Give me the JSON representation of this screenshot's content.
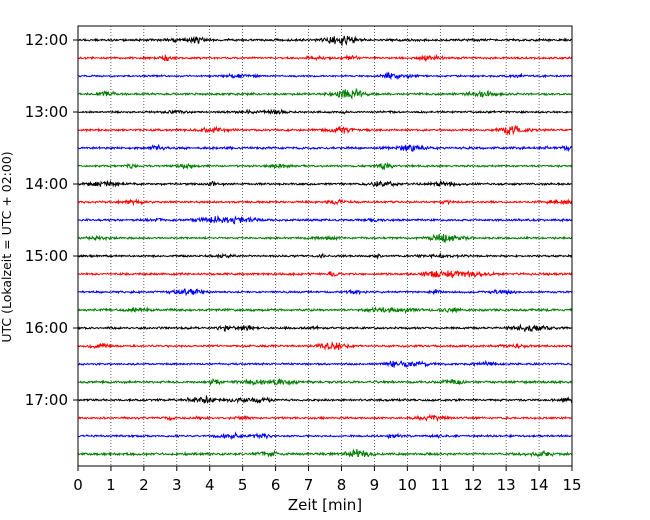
{
  "chart_data": {
    "type": "line",
    "title": "",
    "xlabel": "Zeit  [min]",
    "ylabel": "UTC (Lokalzeit = UTC + 02:00)",
    "xlim": [
      0,
      15
    ],
    "x_ticks": [
      "0",
      "1",
      "2",
      "3",
      "4",
      "5",
      "6",
      "7",
      "8",
      "9",
      "10",
      "11",
      "12",
      "13",
      "14",
      "15"
    ],
    "y_ticks": [
      "12:00",
      "13:00",
      "14:00",
      "15:00",
      "16:00",
      "17:00"
    ],
    "grid": "vertical dotted",
    "legend": "none",
    "trace_colors": [
      "#000000",
      "#ff0000",
      "#0000ff",
      "#007f00"
    ],
    "trace_start": "12:00",
    "trace_interval_min": 15,
    "trace_count": 24,
    "trace_amplitudes": [
      0.6,
      0.5,
      0.45,
      0.55,
      0.5,
      0.55,
      0.6,
      0.5,
      0.55,
      0.5,
      0.55,
      0.5,
      0.5,
      0.55,
      0.5,
      0.6,
      0.55,
      0.5,
      0.5,
      0.6,
      0.55,
      0.5,
      0.5,
      0.6
    ]
  }
}
